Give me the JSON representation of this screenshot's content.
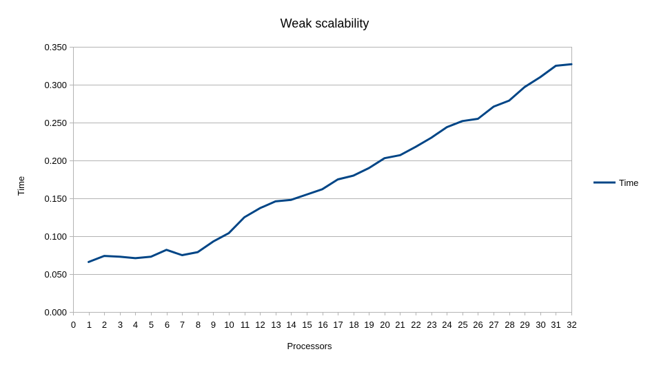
{
  "chart_data": {
    "type": "line",
    "title": "Weak scalability",
    "xlabel": "Processors",
    "ylabel": "Time",
    "xlim": [
      0,
      32
    ],
    "ylim": [
      0,
      0.35
    ],
    "y_tick_step": 0.05,
    "y_tick_decimals": 3,
    "x_ticks": [
      0,
      1,
      2,
      3,
      4,
      5,
      6,
      7,
      8,
      9,
      10,
      11,
      12,
      13,
      14,
      15,
      16,
      17,
      18,
      19,
      20,
      21,
      22,
      23,
      24,
      25,
      26,
      27,
      28,
      29,
      30,
      31,
      32
    ],
    "grid": "horizontal",
    "legend_position": "right",
    "series": [
      {
        "name": "Time",
        "color": "#004586",
        "x": [
          1,
          2,
          3,
          4,
          5,
          6,
          7,
          8,
          9,
          10,
          11,
          12,
          13,
          14,
          15,
          16,
          17,
          18,
          19,
          20,
          21,
          22,
          23,
          24,
          25,
          26,
          27,
          28,
          29,
          30,
          31,
          32
        ],
        "y": [
          0.066,
          0.074,
          0.073,
          0.071,
          0.073,
          0.082,
          0.075,
          0.079,
          0.093,
          0.104,
          0.125,
          0.137,
          0.146,
          0.148,
          0.155,
          0.162,
          0.175,
          0.18,
          0.19,
          0.203,
          0.207,
          0.218,
          0.23,
          0.244,
          0.252,
          0.255,
          0.271,
          0.279,
          0.297,
          0.31,
          0.325,
          0.327
        ]
      }
    ]
  }
}
